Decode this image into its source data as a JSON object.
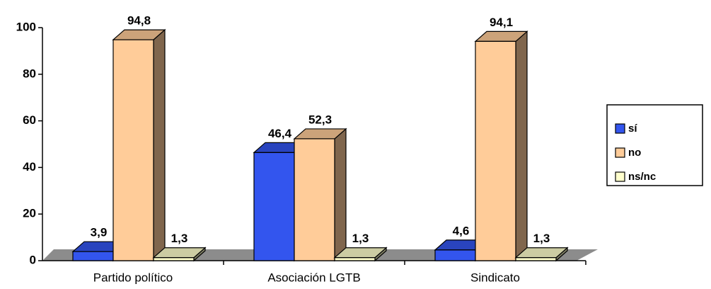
{
  "chart_data": {
    "type": "bar3d",
    "categories": [
      "Partido político",
      "Asociación LGTB",
      "Sindicato"
    ],
    "series": [
      {
        "name": "sí",
        "color": "#3355ee",
        "values": [
          3.9,
          46.4,
          4.6
        ],
        "value_labels": [
          "3,9",
          "46,4",
          "4,6"
        ]
      },
      {
        "name": "no",
        "color": "#ffcc99",
        "values": [
          94.8,
          52.3,
          94.1
        ],
        "value_labels": [
          "94,8",
          "52,3",
          "94,1"
        ]
      },
      {
        "name": "ns/nc",
        "color": "#ffffcc",
        "values": [
          1.3,
          1.3,
          1.3
        ],
        "value_labels": [
          "1,3",
          "1,3",
          "1,3"
        ]
      }
    ],
    "ylim": [
      0,
      100
    ],
    "yticks": [
      0,
      20,
      40,
      60,
      80,
      100
    ],
    "legend": "right"
  }
}
